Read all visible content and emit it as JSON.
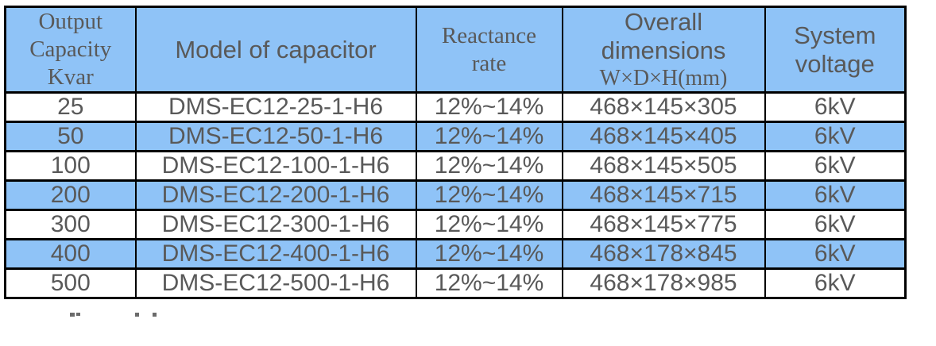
{
  "colors": {
    "header_bg": "#8fc3f7",
    "stripe_bg": "#8fc3f7",
    "row_bg": "#ffffff",
    "border": "#000000",
    "text": "#595959"
  },
  "table": {
    "header": {
      "capacity": "Output Capacity Kvar",
      "model": "Model of capacitor",
      "reactance": "Reactance rate",
      "dimensions_title": "Overall dimensions",
      "dimensions_unit": "W×D×H(mm)",
      "voltage": "System voltage"
    },
    "rows": [
      {
        "capacity": "25",
        "model": "DMS-EC12-25-1-H6",
        "reactance": "12%~14%",
        "dimensions": "468×145×305",
        "voltage": "6kV",
        "highlighted": false
      },
      {
        "capacity": "50",
        "model": "DMS-EC12-50-1-H6",
        "reactance": "12%~14%",
        "dimensions": "468×145×405",
        "voltage": "6kV",
        "highlighted": true
      },
      {
        "capacity": "100",
        "model": "DMS-EC12-100-1-H6",
        "reactance": "12%~14%",
        "dimensions": "468×145×505",
        "voltage": "6kV",
        "highlighted": false
      },
      {
        "capacity": "200",
        "model": "DMS-EC12-200-1-H6",
        "reactance": "12%~14%",
        "dimensions": "468×145×715",
        "voltage": "6kV",
        "highlighted": true
      },
      {
        "capacity": "300",
        "model": "DMS-EC12-300-1-H6",
        "reactance": "12%~14%",
        "dimensions": "468×145×775",
        "voltage": "6kV",
        "highlighted": false
      },
      {
        "capacity": "400",
        "model": "DMS-EC12-400-1-H6",
        "reactance": "12%~14%",
        "dimensions": "468×178×845",
        "voltage": "6kV",
        "highlighted": true
      },
      {
        "capacity": "500",
        "model": "DMS-EC12-500-1-H6",
        "reactance": "12%~14%",
        "dimensions": "468×178×985",
        "voltage": "6kV",
        "highlighted": false
      }
    ]
  }
}
